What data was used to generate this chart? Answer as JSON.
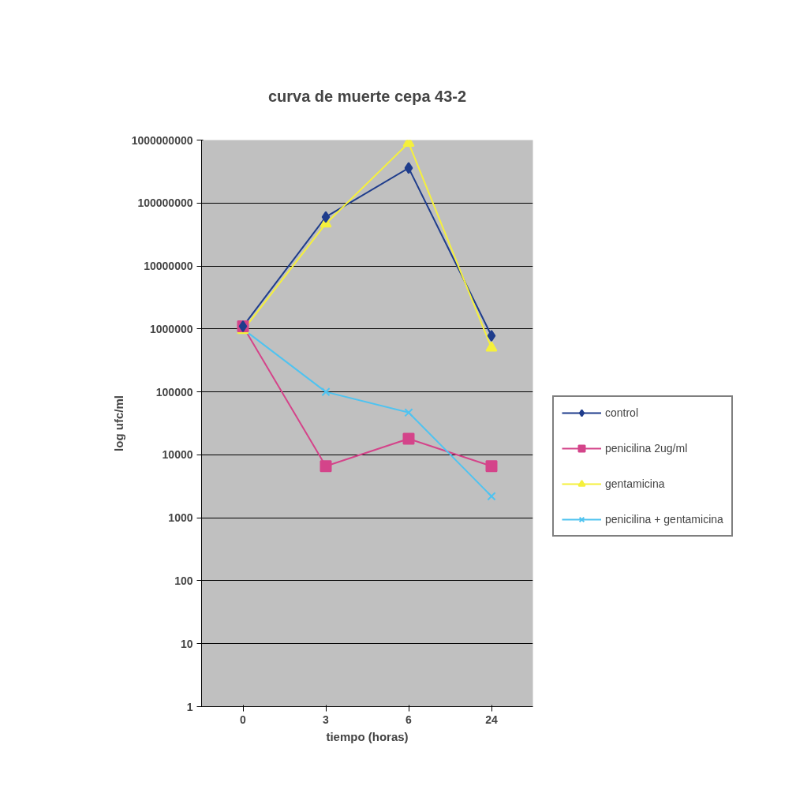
{
  "chart_data": {
    "type": "line",
    "title": "curva de muerte cepa 43-2",
    "xlabel": "tiempo (horas)",
    "ylabel": "log ufc/ml",
    "categories": [
      "0",
      "3",
      "6",
      "24"
    ],
    "series": [
      {
        "name": "control",
        "color": "#1f3d8c",
        "marker": "diamond",
        "values": [
          1100000,
          60000000,
          360000000,
          780000
        ]
      },
      {
        "name": "penicilina 2ug/ml",
        "color": "#d4448a",
        "marker": "square",
        "values": [
          1100000,
          6600,
          18000,
          6600
        ]
      },
      {
        "name": "gentamicina",
        "color": "#f5f03c",
        "marker": "triangle",
        "values": [
          950000,
          47000000,
          900000000,
          500000
        ]
      },
      {
        "name": "penicilina + gentamicina",
        "color": "#4fc3f0",
        "marker": "cross",
        "values": [
          1000000,
          100000,
          47000,
          2200
        ]
      }
    ],
    "log": "y",
    "ylim": [
      1,
      1000000000
    ],
    "yticks": [
      1,
      10,
      100,
      1000,
      10000,
      100000,
      1000000,
      10000000,
      100000000,
      1000000000
    ],
    "grid": "y",
    "legend": "right",
    "line_style": "solid"
  }
}
